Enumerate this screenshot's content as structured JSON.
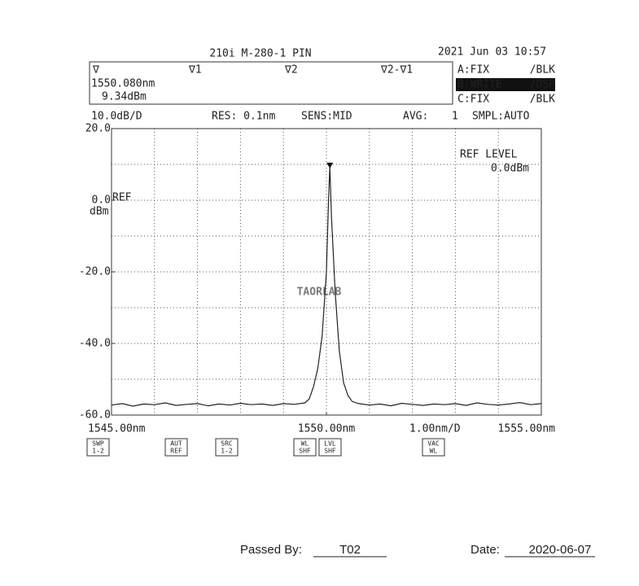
{
  "header": {
    "title": "210i M-280-1 PIN",
    "datetime": "2021 Jun 03 10:57",
    "markers": [
      "∇",
      "∇1",
      "∇2",
      "∇2-∇1"
    ],
    "marker_wavelength": "1550.080nm",
    "marker_level": "9.34dBm",
    "traces": [
      [
        "A:FIX",
        "/BLK"
      ],
      [
        "B:WRITE",
        "/DSP"
      ],
      [
        "C:FIX",
        "/BLK"
      ]
    ],
    "settings": [
      "RES: 0.1nm",
      "SENS:MID",
      "AVG:",
      "1",
      "SMPL:AUTO"
    ]
  },
  "chart_data": {
    "type": "line",
    "color": "#222222",
    "ref_label": "REF",
    "y_unit": "dBm",
    "ref_level_title": "REF LEVEL",
    "ref_level": "0.0dBm",
    "ydiv": {
      "value": 10,
      "label": "10.0dB/D"
    },
    "xdiv": {
      "value": 1,
      "label": "1.00nm/D"
    },
    "xlim": [
      1545,
      1555
    ],
    "ylim": [
      -60,
      20
    ],
    "xticks": [
      {
        "value": 1545,
        "label": "1545.00nm"
      },
      {
        "value": 1550,
        "label": "1550.00nm"
      },
      {
        "value": 1555,
        "label": "1555.00nm"
      }
    ],
    "yticks": [
      {
        "value": 20,
        "label": "20.0"
      },
      {
        "value": 0,
        "label": "0.0"
      },
      {
        "value": -20,
        "label": "-20.0"
      },
      {
        "value": -40,
        "label": "-40.0"
      },
      {
        "value": -60,
        "label": "-60.0"
      }
    ],
    "grid": true,
    "x": [
      1545,
      1545.25,
      1545.5,
      1545.75,
      1546,
      1546.25,
      1546.5,
      1546.75,
      1547,
      1547.25,
      1547.5,
      1547.75,
      1548,
      1548.25,
      1548.5,
      1548.75,
      1549,
      1549.25,
      1549.5,
      1549.6,
      1549.7,
      1549.8,
      1549.9,
      1550,
      1550.05,
      1550.08,
      1550.12,
      1550.2,
      1550.3,
      1550.4,
      1550.5,
      1550.6,
      1550.75,
      1551,
      1551.25,
      1551.5,
      1551.75,
      1552,
      1552.25,
      1552.5,
      1552.75,
      1553,
      1553.25,
      1553.5,
      1553.75,
      1554,
      1554.25,
      1554.5,
      1554.75,
      1555
    ],
    "values": [
      -57.2,
      -56.8,
      -57.5,
      -56.9,
      -57.1,
      -56.6,
      -57.3,
      -57.0,
      -56.8,
      -57.4,
      -56.9,
      -57.2,
      -56.7,
      -57.1,
      -56.9,
      -57.3,
      -56.8,
      -57.0,
      -56.6,
      -55.5,
      -52,
      -47,
      -38,
      -20,
      0,
      9.34,
      -5,
      -25,
      -42,
      -51,
      -54.5,
      -56.2,
      -56.8,
      -57.2,
      -56.9,
      -57.4,
      -56.7,
      -57.0,
      -57.3,
      -56.9,
      -57.1,
      -56.8,
      -57.3,
      -56.6,
      -57.0,
      -57.2,
      -56.9,
      -56.5,
      -57.1,
      -56.8
    ]
  },
  "buttons": [
    [
      "SWP",
      "1-2"
    ],
    [
      "AUT",
      "REF"
    ],
    [
      "SRC",
      "1-2"
    ],
    [
      "WL",
      "SHF"
    ],
    [
      "LVL",
      "SHF"
    ],
    [
      "VAC",
      "WL"
    ]
  ],
  "watermark": "TAORLAB",
  "footer": {
    "passed_label": "Passed By:",
    "passed_value": "T02",
    "date_label": "Date:",
    "date_value": "2020-06-07"
  }
}
